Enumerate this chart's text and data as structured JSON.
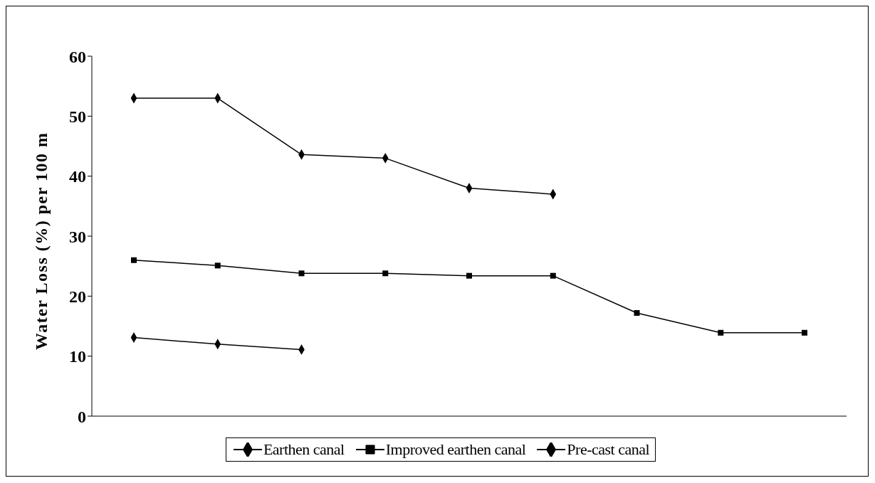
{
  "chart_data": {
    "type": "line",
    "ylabel": "Water Loss (%) per 100 m",
    "categories": [
      null,
      null,
      null,
      null,
      null,
      null,
      null,
      null,
      null
    ],
    "ylim": [
      0,
      60
    ],
    "yticks": [
      0,
      10,
      20,
      30,
      40,
      50,
      60
    ],
    "grid": false,
    "legend": "bottom",
    "line_style": "solid",
    "series": [
      {
        "name": "Earthen canal",
        "color": "#020202",
        "marker": "diamond",
        "values": [
          53,
          53,
          43.6,
          43,
          38,
          37,
          null,
          null,
          null
        ]
      },
      {
        "name": "Improved earthen canal",
        "color": "#000000",
        "marker": "square",
        "values": [
          26,
          25.1,
          23.8,
          23.8,
          23.4,
          23.4,
          17.2,
          13.9,
          13.9
        ]
      },
      {
        "name": "Pre-cast canal",
        "color": "#040404",
        "marker": "diamond",
        "values": [
          13.1,
          12,
          11.1,
          null,
          null,
          null,
          null,
          null,
          null
        ]
      }
    ]
  }
}
